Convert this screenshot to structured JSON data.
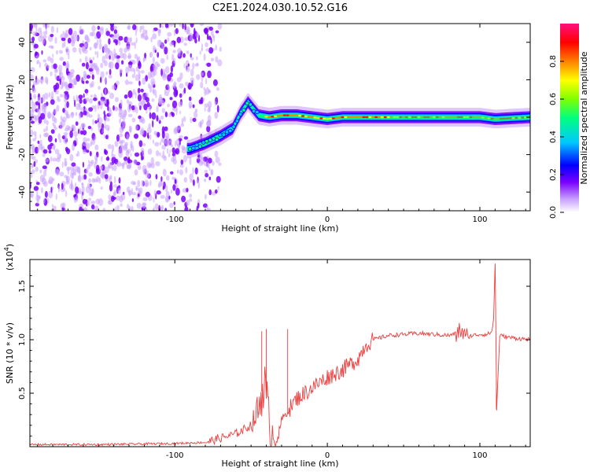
{
  "title": "C2E1.2024.030.10.52.G16",
  "chart_data": [
    {
      "type": "heatmap",
      "xlabel": "Height of straight line (km)",
      "ylabel": "Frequency (Hz)",
      "xlim": [
        -195,
        133
      ],
      "ylim": [
        -50,
        50
      ],
      "x_ticks": [
        -100,
        0,
        100
      ],
      "y_ticks": [
        -40,
        -20,
        0,
        20,
        40
      ],
      "colorbar": {
        "label": "Normalized spectral amplitude",
        "range": [
          0,
          1
        ],
        "ticks": [
          0.0,
          0.2,
          0.4,
          0.6,
          0.8
        ],
        "tick_labels": [
          "0.0",
          "0.2",
          "0.4",
          "0.6",
          "0.8"
        ],
        "colormap": [
          "#ffffff",
          "#c8a0ff",
          "#7a00ff",
          "#0000ff",
          "#00c8ff",
          "#00ff80",
          "#80ff00",
          "#ffff00",
          "#ff8000",
          "#ff0000",
          "#ff1080"
        ]
      },
      "ridge": [
        {
          "x": -90,
          "y": -17
        },
        {
          "x": -80,
          "y": -14
        },
        {
          "x": -70,
          "y": -10
        },
        {
          "x": -62,
          "y": -6
        },
        {
          "x": -57,
          "y": 2
        },
        {
          "x": -52,
          "y": 8
        },
        {
          "x": -45,
          "y": 1
        },
        {
          "x": -38,
          "y": 0
        },
        {
          "x": -30,
          "y": 1
        },
        {
          "x": -20,
          "y": 1
        },
        {
          "x": -10,
          "y": 0
        },
        {
          "x": 0,
          "y": -1
        },
        {
          "x": 10,
          "y": 0
        },
        {
          "x": 20,
          "y": 0
        },
        {
          "x": 40,
          "y": 0
        },
        {
          "x": 60,
          "y": 0
        },
        {
          "x": 80,
          "y": 0
        },
        {
          "x": 100,
          "y": 0
        },
        {
          "x": 110,
          "y": -1
        },
        {
          "x": 133,
          "y": 0
        }
      ]
    },
    {
      "type": "line",
      "xlabel": "Height of straight line (km)",
      "ylabel": "SNR (10 * v/v)",
      "y_multiplier": "(x10^4)",
      "y_multiplier_base": "(x10",
      "y_multiplier_exp": "4",
      "y_multiplier_close": ")",
      "xlim": [
        -195,
        133
      ],
      "ylim": [
        0,
        1.75
      ],
      "x_ticks": [
        -100,
        0,
        100
      ],
      "y_ticks": [
        0.5,
        1.0,
        1.5
      ],
      "y_tick_labels": [
        "0.5",
        "1.0",
        "1.5"
      ],
      "color": "#f03c3c",
      "series": [
        {
          "x": [
            -195,
            -150,
            -100,
            -80,
            -70,
            -60,
            -50,
            -45,
            -42,
            -40,
            -38,
            -35,
            -32,
            -30,
            -25,
            -20,
            -15,
            -10,
            -5,
            0,
            10,
            20,
            25,
            30,
            40,
            50,
            60,
            70,
            80,
            85,
            88,
            90,
            95,
            100,
            105,
            108,
            109,
            110,
            111,
            113,
            120,
            133
          ],
          "y": [
            0.02,
            0.02,
            0.03,
            0.04,
            0.08,
            0.12,
            0.2,
            0.35,
            0.6,
            0.45,
            0.2,
            0.1,
            0.1,
            0.25,
            0.35,
            0.45,
            0.5,
            0.55,
            0.6,
            0.65,
            0.72,
            0.82,
            0.95,
            1.0,
            1.04,
            1.05,
            1.06,
            1.05,
            1.04,
            1.06,
            1.1,
            1.02,
            1.04,
            1.05,
            1.05,
            1.08,
            1.2,
            1.72,
            0.35,
            1.04,
            1.02,
            1.0
          ]
        }
      ]
    }
  ]
}
